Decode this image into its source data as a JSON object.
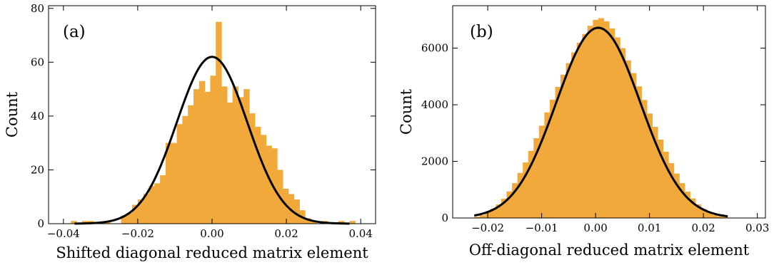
{
  "chart_data": [
    {
      "type": "bar",
      "panel_label": "(a)",
      "xlabel": "Shifted diagonal reduced matrix element",
      "ylabel": "Count",
      "xlim": [
        -0.044,
        0.044
      ],
      "ylim": [
        0,
        81
      ],
      "xticks": [
        -0.04,
        -0.02,
        0.0,
        0.02,
        0.04
      ],
      "xtick_labels": [
        "−0.04",
        "−0.02",
        "0.00",
        "0.02",
        "0.04"
      ],
      "yticks": [
        0,
        20,
        40,
        60,
        80
      ],
      "ytick_labels": [
        "0",
        "20",
        "40",
        "60",
        "80"
      ],
      "bar_color": "#F0A93A",
      "bin_edges": [
        -0.038,
        -0.0365,
        -0.035,
        -0.0335,
        -0.032,
        -0.0305,
        -0.029,
        -0.0275,
        -0.026,
        -0.0245,
        -0.023,
        -0.0215,
        -0.02,
        -0.0185,
        -0.017,
        -0.0155,
        -0.014,
        -0.0125,
        -0.011,
        -0.0095,
        -0.008,
        -0.0065,
        -0.005,
        -0.0035,
        -0.002,
        -0.0005,
        0.001,
        0.0025,
        0.004,
        0.0055,
        0.007,
        0.0085,
        0.01,
        0.0115,
        0.013,
        0.0145,
        0.016,
        0.0175,
        0.019,
        0.0205,
        0.022,
        0.0235,
        0.025,
        0.0265,
        0.028,
        0.0295,
        0.031,
        0.0325,
        0.034,
        0.0355,
        0.037,
        0.0385
      ],
      "counts": [
        1,
        0,
        1,
        1,
        0,
        0,
        1,
        0,
        0,
        3,
        4,
        7,
        9,
        11,
        14,
        15,
        18,
        30,
        30,
        37,
        40,
        44,
        50,
        53,
        49,
        55,
        75,
        51,
        45,
        51,
        47,
        50,
        41,
        36,
        33,
        29,
        28,
        20,
        13,
        11,
        9,
        5,
        2,
        1,
        0,
        1,
        0,
        0,
        1,
        0,
        1
      ],
      "fit_curve": {
        "type": "gaussian",
        "amplitude": 62,
        "mean": 0.0,
        "sigma": 0.0095,
        "x_range": [
          -0.037,
          0.037
        ],
        "color": "#000000"
      }
    },
    {
      "type": "bar",
      "panel_label": "(b)",
      "xlabel": "Off-diagonal reduced matrix element",
      "ylabel": "Count",
      "xlim": [
        -0.0265,
        0.0315
      ],
      "ylim": [
        0,
        7500
      ],
      "xticks": [
        -0.02,
        -0.01,
        0.0,
        0.01,
        0.02,
        0.03
      ],
      "xtick_labels": [
        "−0.02",
        "−0.01",
        "0.00",
        "0.01",
        "0.02",
        "0.03"
      ],
      "yticks": [
        0,
        2000,
        4000,
        6000
      ],
      "ytick_labels": [
        "0",
        "2000",
        "4000",
        "6000"
      ],
      "bar_color": "#F0A93A",
      "bin_edges": [
        -0.0225,
        -0.0215,
        -0.0205,
        -0.0195,
        -0.0185,
        -0.0175,
        -0.0165,
        -0.0155,
        -0.0145,
        -0.0135,
        -0.0125,
        -0.0115,
        -0.0105,
        -0.0095,
        -0.0085,
        -0.0075,
        -0.0065,
        -0.0055,
        -0.0045,
        -0.0035,
        -0.0025,
        -0.0015,
        -0.0005,
        0.0005,
        0.0015,
        0.0025,
        0.0035,
        0.0045,
        0.0055,
        0.0065,
        0.0075,
        0.0085,
        0.0095,
        0.0105,
        0.0115,
        0.0125,
        0.0135,
        0.0145,
        0.0155,
        0.0165,
        0.0175,
        0.0185,
        0.0195,
        0.0205,
        0.0215,
        0.0225,
        0.0235,
        0.0245
      ],
      "counts": [
        40,
        100,
        210,
        330,
        480,
        680,
        940,
        1230,
        1590,
        1960,
        2370,
        2820,
        3260,
        3730,
        4180,
        4630,
        5060,
        5470,
        5850,
        6190,
        6500,
        6790,
        7000,
        7060,
        6950,
        6700,
        6380,
        6000,
        5570,
        5120,
        4650,
        4170,
        3690,
        3220,
        2770,
        2340,
        1940,
        1570,
        1230,
        930,
        690,
        480,
        320,
        200,
        110,
        60,
        30
      ],
      "fit_curve": {
        "type": "gaussian",
        "amplitude": 6720,
        "mean": 0.0005,
        "sigma": 0.0078,
        "x_range": [
          -0.0225,
          0.0245
        ],
        "color": "#000000"
      }
    }
  ]
}
